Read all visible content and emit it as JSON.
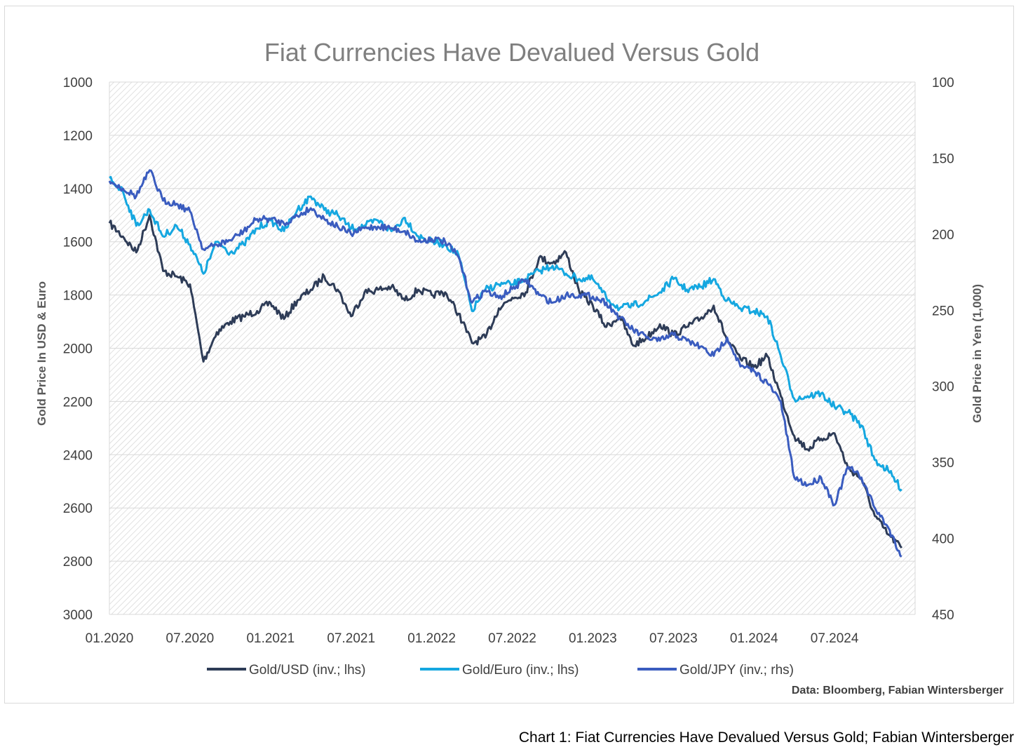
{
  "caption": "Chart 1: Fiat Currencies Have Devalued Versus Gold; Fabian Wintersberger",
  "chart_data": {
    "type": "line",
    "title": "Fiat Currencies Have Devalued Versus Gold",
    "ylabel_left": "Gold Price In USD & Euro",
    "ylabel_right": "Gold Price in Yen (1,000)",
    "source": "Data: Bloomberg, Fabian Wintersberger",
    "left_axis": {
      "min": 1000,
      "max": 3000,
      "inverted": true,
      "ticks": [
        "1000",
        "1200",
        "1400",
        "1600",
        "1800",
        "2000",
        "2200",
        "2400",
        "2600",
        "2800",
        "3000"
      ]
    },
    "right_axis": {
      "min": 100,
      "max": 450,
      "inverted": true,
      "ticks": [
        "100",
        "150",
        "200",
        "250",
        "300",
        "350",
        "400",
        "450"
      ]
    },
    "x_axis": {
      "start": "2020-01",
      "end": "2025-01",
      "ticks": [
        "01.2020",
        "07.2020",
        "01.2021",
        "07.2021",
        "01.2022",
        "07.2022",
        "01.2023",
        "07.2023",
        "01.2024",
        "07.2024"
      ]
    },
    "grid": "horizontal",
    "legend_position": "bottom",
    "colors": {
      "usd": "#2e3c57",
      "eur": "#15a7e0",
      "jpy": "#3a5cbf",
      "grid": "#d9d9d9",
      "hatch": "#d0d0d0"
    },
    "series": [
      {
        "name": "Gold/USD (inv.; lhs)",
        "axis": "left",
        "color": "#2e3c57",
        "points": [
          [
            "2020-01",
            1530
          ],
          [
            "2020-02",
            1580
          ],
          [
            "2020-03",
            1640
          ],
          [
            "2020-04",
            1500
          ],
          [
            "2020-05",
            1710
          ],
          [
            "2020-06",
            1730
          ],
          [
            "2020-07",
            1760
          ],
          [
            "2020-08",
            2050
          ],
          [
            "2020-09",
            1940
          ],
          [
            "2020-10",
            1900
          ],
          [
            "2020-11",
            1880
          ],
          [
            "2020-12",
            1860
          ],
          [
            "2021-01",
            1830
          ],
          [
            "2021-02",
            1890
          ],
          [
            "2021-03",
            1820
          ],
          [
            "2021-04",
            1780
          ],
          [
            "2021-05",
            1730
          ],
          [
            "2021-06",
            1780
          ],
          [
            "2021-07",
            1880
          ],
          [
            "2021-08",
            1790
          ],
          [
            "2021-09",
            1780
          ],
          [
            "2021-10",
            1770
          ],
          [
            "2021-11",
            1820
          ],
          [
            "2021-12",
            1780
          ],
          [
            "2022-01",
            1800
          ],
          [
            "2022-02",
            1790
          ],
          [
            "2022-03",
            1870
          ],
          [
            "2022-04",
            1980
          ],
          [
            "2022-05",
            1960
          ],
          [
            "2022-06",
            1850
          ],
          [
            "2022-07",
            1810
          ],
          [
            "2022-08",
            1790
          ],
          [
            "2022-09",
            1660
          ],
          [
            "2022-10",
            1680
          ],
          [
            "2022-11",
            1640
          ],
          [
            "2022-12",
            1790
          ],
          [
            "2023-01",
            1840
          ],
          [
            "2023-02",
            1920
          ],
          [
            "2023-03",
            1880
          ],
          [
            "2023-04",
            1990
          ],
          [
            "2023-05",
            1960
          ],
          [
            "2023-06",
            1910
          ],
          [
            "2023-07",
            1950
          ],
          [
            "2023-08",
            1920
          ],
          [
            "2023-09",
            1890
          ],
          [
            "2023-10",
            1840
          ],
          [
            "2023-11",
            1970
          ],
          [
            "2023-12",
            2040
          ],
          [
            "2024-01",
            2070
          ],
          [
            "2024-02",
            2030
          ],
          [
            "2024-03",
            2180
          ],
          [
            "2024-04",
            2330
          ],
          [
            "2024-05",
            2380
          ],
          [
            "2024-06",
            2340
          ],
          [
            "2024-07",
            2320
          ],
          [
            "2024-08",
            2450
          ],
          [
            "2024-09",
            2490
          ],
          [
            "2024-10",
            2630
          ],
          [
            "2024-11",
            2700
          ],
          [
            "2024-12",
            2750
          ]
        ]
      },
      {
        "name": "Gold/Euro (inv.; lhs)",
        "axis": "left",
        "color": "#15a7e0",
        "points": [
          [
            "2020-01",
            1360
          ],
          [
            "2020-02",
            1410
          ],
          [
            "2020-03",
            1540
          ],
          [
            "2020-04",
            1480
          ],
          [
            "2020-05",
            1580
          ],
          [
            "2020-06",
            1540
          ],
          [
            "2020-07",
            1610
          ],
          [
            "2020-08",
            1720
          ],
          [
            "2020-09",
            1600
          ],
          [
            "2020-10",
            1640
          ],
          [
            "2020-11",
            1610
          ],
          [
            "2020-12",
            1550
          ],
          [
            "2021-01",
            1520
          ],
          [
            "2021-02",
            1560
          ],
          [
            "2021-03",
            1480
          ],
          [
            "2021-04",
            1430
          ],
          [
            "2021-05",
            1480
          ],
          [
            "2021-06",
            1500
          ],
          [
            "2021-07",
            1550
          ],
          [
            "2021-08",
            1540
          ],
          [
            "2021-09",
            1520
          ],
          [
            "2021-10",
            1560
          ],
          [
            "2021-11",
            1510
          ],
          [
            "2021-12",
            1580
          ],
          [
            "2022-01",
            1600
          ],
          [
            "2022-02",
            1610
          ],
          [
            "2022-03",
            1650
          ],
          [
            "2022-04",
            1860
          ],
          [
            "2022-05",
            1780
          ],
          [
            "2022-06",
            1760
          ],
          [
            "2022-07",
            1760
          ],
          [
            "2022-08",
            1740
          ],
          [
            "2022-09",
            1710
          ],
          [
            "2022-10",
            1690
          ],
          [
            "2022-11",
            1720
          ],
          [
            "2022-12",
            1740
          ],
          [
            "2023-01",
            1740
          ],
          [
            "2023-02",
            1810
          ],
          [
            "2023-03",
            1850
          ],
          [
            "2023-04",
            1840
          ],
          [
            "2023-05",
            1820
          ],
          [
            "2023-06",
            1790
          ],
          [
            "2023-07",
            1740
          ],
          [
            "2023-08",
            1780
          ],
          [
            "2023-09",
            1770
          ],
          [
            "2023-10",
            1740
          ],
          [
            "2023-11",
            1820
          ],
          [
            "2023-12",
            1850
          ],
          [
            "2024-01",
            1860
          ],
          [
            "2024-02",
            1880
          ],
          [
            "2024-03",
            2030
          ],
          [
            "2024-04",
            2190
          ],
          [
            "2024-05",
            2180
          ],
          [
            "2024-06",
            2170
          ],
          [
            "2024-07",
            2220
          ],
          [
            "2024-08",
            2240
          ],
          [
            "2024-09",
            2290
          ],
          [
            "2024-10",
            2420
          ],
          [
            "2024-11",
            2460
          ],
          [
            "2024-12",
            2530
          ]
        ]
      },
      {
        "name": "Gold/JPY (inv.; rhs)",
        "axis": "right",
        "color": "#3a5cbf",
        "points": [
          [
            "2020-01",
            165
          ],
          [
            "2020-02",
            170
          ],
          [
            "2020-03",
            175
          ],
          [
            "2020-04",
            158
          ],
          [
            "2020-05",
            178
          ],
          [
            "2020-06",
            180
          ],
          [
            "2020-07",
            185
          ],
          [
            "2020-08",
            210
          ],
          [
            "2020-09",
            207
          ],
          [
            "2020-10",
            204
          ],
          [
            "2020-11",
            198
          ],
          [
            "2020-12",
            190
          ],
          [
            "2021-01",
            190
          ],
          [
            "2021-02",
            193
          ],
          [
            "2021-03",
            188
          ],
          [
            "2021-04",
            183
          ],
          [
            "2021-05",
            190
          ],
          [
            "2021-06",
            195
          ],
          [
            "2021-07",
            200
          ],
          [
            "2021-08",
            196
          ],
          [
            "2021-09",
            195
          ],
          [
            "2021-10",
            196
          ],
          [
            "2021-11",
            198
          ],
          [
            "2021-12",
            205
          ],
          [
            "2022-01",
            203
          ],
          [
            "2022-02",
            205
          ],
          [
            "2022-03",
            215
          ],
          [
            "2022-04",
            245
          ],
          [
            "2022-05",
            237
          ],
          [
            "2022-06",
            242
          ],
          [
            "2022-07",
            236
          ],
          [
            "2022-08",
            230
          ],
          [
            "2022-09",
            240
          ],
          [
            "2022-10",
            245
          ],
          [
            "2022-11",
            240
          ],
          [
            "2022-12",
            240
          ],
          [
            "2023-01",
            241
          ],
          [
            "2023-02",
            245
          ],
          [
            "2023-03",
            255
          ],
          [
            "2023-04",
            263
          ],
          [
            "2023-05",
            268
          ],
          [
            "2023-06",
            270
          ],
          [
            "2023-07",
            266
          ],
          [
            "2023-08",
            270
          ],
          [
            "2023-09",
            274
          ],
          [
            "2023-10",
            280
          ],
          [
            "2023-11",
            268
          ],
          [
            "2023-12",
            287
          ],
          [
            "2024-01",
            290
          ],
          [
            "2024-02",
            298
          ],
          [
            "2024-03",
            310
          ],
          [
            "2024-04",
            360
          ],
          [
            "2024-05",
            365
          ],
          [
            "2024-06",
            360
          ],
          [
            "2024-07",
            378
          ],
          [
            "2024-08",
            353
          ],
          [
            "2024-09",
            360
          ],
          [
            "2024-10",
            380
          ],
          [
            "2024-11",
            393
          ],
          [
            "2024-12",
            412
          ]
        ]
      }
    ]
  }
}
